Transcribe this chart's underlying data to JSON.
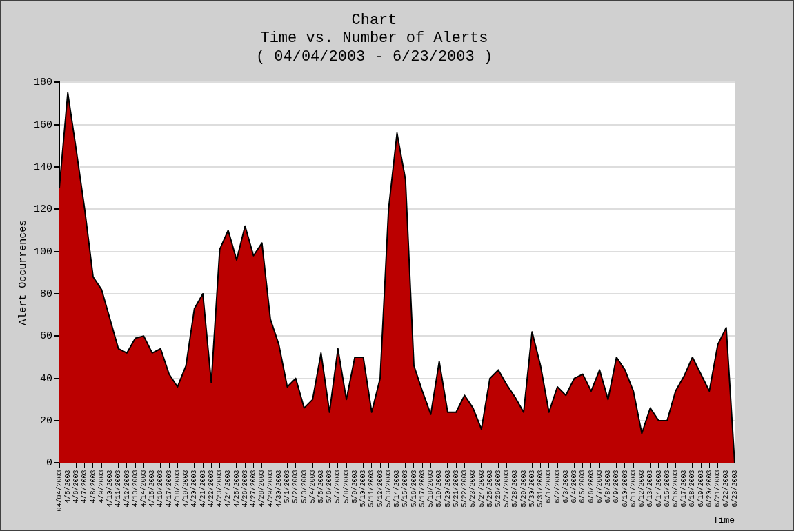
{
  "chart_data": {
    "type": "area",
    "title": "Chart",
    "subtitle": "Time vs. Number of Alerts\n( 04/04/2003 - 6/23/2003 )",
    "xlabel": "Time",
    "ylabel": "Alert Occurrences",
    "categories": [
      "04/04/2003",
      "4/5/2003",
      "4/6/2003",
      "4/7/2003",
      "4/8/2003",
      "4/9/2003",
      "4/10/2003",
      "4/11/2003",
      "4/12/2003",
      "4/13/2003",
      "4/14/2003",
      "4/15/2003",
      "4/16/2003",
      "4/17/2003",
      "4/18/2003",
      "4/19/2003",
      "4/20/2003",
      "4/21/2003",
      "4/22/2003",
      "4/23/2003",
      "4/24/2003",
      "4/25/2003",
      "4/26/2003",
      "4/27/2003",
      "4/28/2003",
      "4/29/2003",
      "4/30/2003",
      "5/1/2003",
      "5/2/2003",
      "5/3/2003",
      "5/4/2003",
      "5/5/2003",
      "5/6/2003",
      "5/7/2003",
      "5/8/2003",
      "5/9/2003",
      "5/10/2003",
      "5/11/2003",
      "5/12/2003",
      "5/13/2003",
      "5/14/2003",
      "5/15/2003",
      "5/16/2003",
      "5/17/2003",
      "5/18/2003",
      "5/19/2003",
      "5/20/2003",
      "5/21/2003",
      "5/22/2003",
      "5/23/2003",
      "5/24/2003",
      "5/25/2003",
      "5/26/2003",
      "5/27/2003",
      "5/28/2003",
      "5/29/2003",
      "5/30/2003",
      "5/31/2003",
      "6/1/2003",
      "6/2/2003",
      "6/3/2003",
      "6/4/2003",
      "6/5/2003",
      "6/6/2003",
      "6/7/2003",
      "6/8/2003",
      "6/9/2003",
      "6/10/2003",
      "6/11/2003",
      "6/12/2003",
      "6/13/2003",
      "6/14/2003",
      "6/15/2003",
      "6/16/2003",
      "6/17/2003",
      "6/18/2003",
      "6/19/2003",
      "6/20/2003",
      "6/21/2003",
      "6/22/2003",
      "6/23/2003"
    ],
    "series": [
      {
        "color": "#bb0000",
        "values": [
          130,
          175,
          148,
          120,
          88,
          82,
          68,
          54,
          52,
          59,
          60,
          52,
          54,
          42,
          36,
          46,
          73,
          80,
          38,
          101,
          110,
          96,
          112,
          98,
          104,
          68,
          56,
          36,
          40,
          26,
          30,
          52,
          24,
          54,
          30,
          50,
          50,
          24,
          40,
          120,
          156,
          134,
          46,
          34,
          23,
          48,
          24,
          24,
          32,
          26,
          16,
          40,
          44,
          37,
          31,
          24,
          62,
          46,
          24,
          36,
          32,
          40,
          42,
          34,
          44,
          30,
          50,
          44,
          34,
          14,
          26,
          20,
          20,
          34,
          41,
          50,
          42,
          34,
          56,
          64,
          0
        ]
      }
    ],
    "ylim": [
      0,
      180
    ],
    "yticks": [
      0,
      20,
      40,
      60,
      80,
      100,
      120,
      140,
      160,
      180
    ],
    "grid": "y",
    "legend": false,
    "marker": "none",
    "line_style": "solid"
  }
}
